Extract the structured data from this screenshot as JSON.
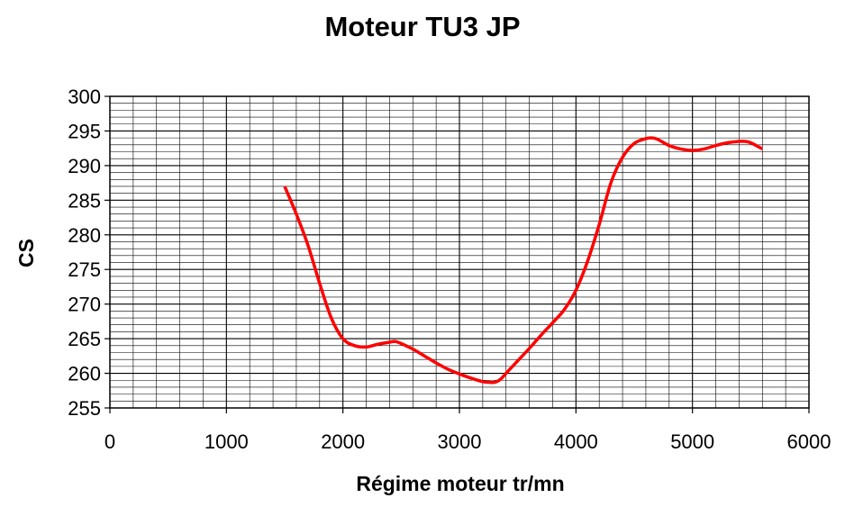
{
  "chart_data": {
    "type": "line",
    "title": "Moteur TU3 JP",
    "xlabel": "Régime moteur tr/mn",
    "ylabel": "CS",
    "xlim": [
      0,
      6000
    ],
    "ylim": [
      255,
      300
    ],
    "x_ticks": [
      "0",
      "1000",
      "2000",
      "3000",
      "4000",
      "5000",
      "6000"
    ],
    "y_ticks": [
      "255",
      "260",
      "265",
      "270",
      "275",
      "280",
      "285",
      "290",
      "295",
      "300"
    ],
    "grid": true,
    "legend": "none",
    "series": [
      {
        "color": "#ff0000",
        "x": [
          1500,
          1600,
          1700,
          1800,
          1900,
          2000,
          2100,
          2200,
          2300,
          2400,
          2450,
          2500,
          2600,
          2700,
          2800,
          2900,
          3000,
          3100,
          3200,
          3250,
          3300,
          3350,
          3400,
          3500,
          3600,
          3700,
          3800,
          3900,
          4000,
          4100,
          4200,
          4300,
          4400,
          4500,
          4600,
          4650,
          4700,
          4800,
          4900,
          5000,
          5100,
          5200,
          5300,
          5400,
          5450,
          5500,
          5600
        ],
        "y": [
          287,
          283,
          278.5,
          273,
          268,
          265,
          264,
          263.8,
          264.2,
          264.5,
          264.6,
          264.3,
          263.5,
          262.5,
          261.5,
          260.6,
          259.9,
          259.3,
          258.8,
          258.7,
          258.7,
          259.1,
          260,
          261.8,
          263.6,
          265.5,
          267.3,
          269.2,
          272,
          276.2,
          281.5,
          287.5,
          291.2,
          293.2,
          293.9,
          294,
          293.8,
          292.9,
          292.4,
          292.2,
          292.4,
          292.9,
          293.3,
          293.5,
          293.5,
          293.3,
          292.4
        ]
      }
    ]
  }
}
